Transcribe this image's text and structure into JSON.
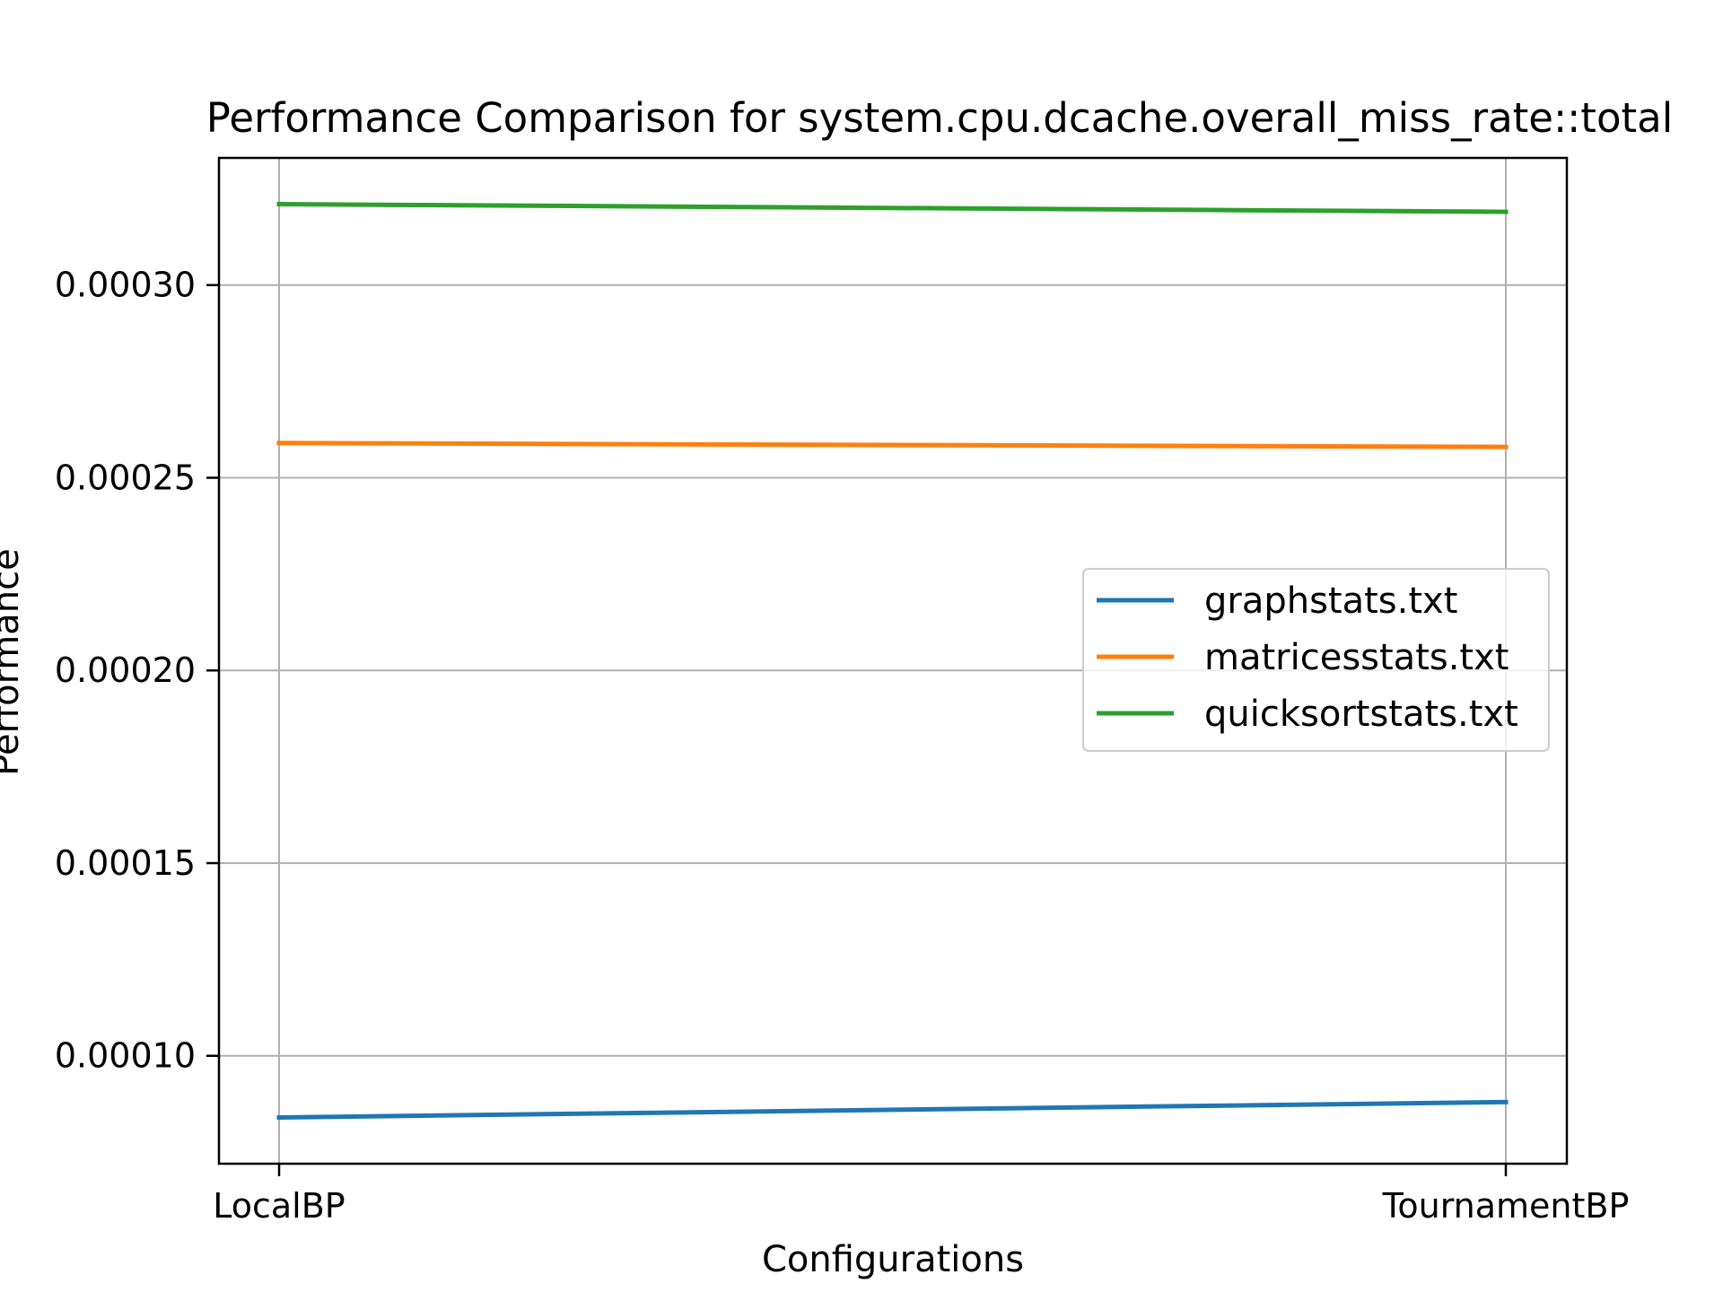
{
  "chart_data": {
    "type": "line",
    "title": "Performance Comparison for system.cpu.dcache.overall_miss_rate::total",
    "xlabel": "Configurations",
    "ylabel": "Performance",
    "categories": [
      "LocalBP",
      "TournamentBP"
    ],
    "series": [
      {
        "name": "graphstats.txt",
        "color": "#1f77b4",
        "values": [
          8.4e-05,
          8.8e-05
        ]
      },
      {
        "name": "matricesstats.txt",
        "color": "#ff7f0e",
        "values": [
          0.000259,
          0.000258
        ]
      },
      {
        "name": "quicksortstats.txt",
        "color": "#2ca02c",
        "values": [
          0.000321,
          0.000319
        ]
      }
    ],
    "yticks": [
      0.0001,
      0.00015,
      0.0002,
      0.00025,
      0.0003
    ],
    "ytick_labels": [
      "0.00010",
      "0.00015",
      "0.00020",
      "0.00025",
      "0.00030"
    ],
    "ylim": [
      7.2e-05,
      0.000333
    ],
    "grid": true,
    "legend_position": "center-right"
  }
}
